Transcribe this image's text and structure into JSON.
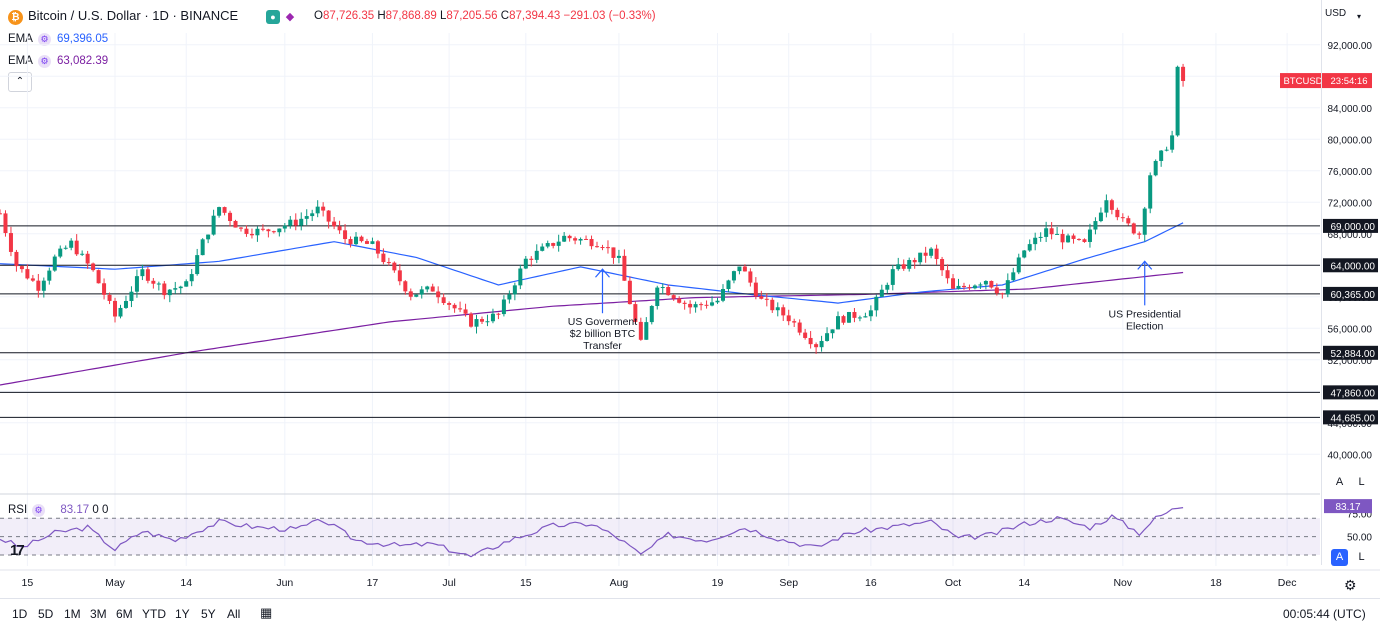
{
  "header": {
    "symbol_icon": "bitcoin-icon",
    "symbol_icon_glyph": "₿",
    "title": "Bitcoin / U.S. Dollar · 1D · BINANCE",
    "ohlc": {
      "o_label": "O",
      "o": "87,726.35",
      "h_label": "H",
      "h": "87,868.89",
      "l_label": "L",
      "l": "87,205.56",
      "c_label": "C",
      "c": "87,394.43",
      "change": "−291.03 (−0.33%)"
    }
  },
  "indicators": [
    {
      "label": "EMA",
      "value": "69,396.05",
      "color": "#2962ff"
    },
    {
      "label": "EMA",
      "value": "63,082.39",
      "color": "#7b1fa2"
    }
  ],
  "rsi_legend": {
    "label": "RSI",
    "value": "83.17",
    "extra1": "0",
    "extra2": "0",
    "color": "#7e57c2"
  },
  "currency": "USD",
  "price_tag": {
    "symbol": "BTCUSD",
    "countdown": "23:54:16"
  },
  "range_buttons": [
    "1D",
    "5D",
    "1M",
    "3M",
    "6M",
    "YTD",
    "1Y",
    "5Y",
    "All"
  ],
  "clock": "00:05:44 (UTC)",
  "axis_buttons": {
    "a": "A",
    "l": "L"
  },
  "logo_text": "17",
  "chart_data": {
    "type": "candlestick",
    "title": "Bitcoin / U.S. Dollar · 1D · BINANCE",
    "y_ticks": [
      "40,000.00",
      "44,000.00",
      "48,000.00",
      "52,000.00",
      "56,000.00",
      "60,000.00",
      "64,000.00",
      "68,000.00",
      "72,000.00",
      "76,000.00",
      "80,000.00",
      "84,000.00",
      "88,000.00",
      "92,000.00"
    ],
    "y_tick_values": [
      40000,
      44000,
      48000,
      52000,
      56000,
      60000,
      64000,
      68000,
      72000,
      76000,
      80000,
      84000,
      88000,
      92000
    ],
    "ylim": [
      38000,
      93500
    ],
    "x_ticks": [
      "15",
      "May",
      "14",
      "Jun",
      "17",
      "Jul",
      "15",
      "Aug",
      "19",
      "Sep",
      "16",
      "Oct",
      "14",
      "Nov",
      "18",
      "Dec"
    ],
    "x_tick_dates": [
      "2024-04-15",
      "2024-05-01",
      "2024-05-14",
      "2024-06-01",
      "2024-06-17",
      "2024-07-01",
      "2024-07-15",
      "2024-08-01",
      "2024-08-19",
      "2024-09-01",
      "2024-09-16",
      "2024-10-01",
      "2024-10-14",
      "2024-11-01",
      "2024-11-18",
      "2024-12-01"
    ],
    "xlim": [
      "2024-04-10",
      "2024-12-07"
    ],
    "levels": [
      {
        "value": 69000,
        "label": "69,000.00"
      },
      {
        "value": 64000,
        "label": "64,000.00"
      },
      {
        "value": 60365,
        "label": "60,365.00"
      },
      {
        "value": 52884,
        "label": "52,884.00"
      },
      {
        "value": 47860,
        "label": "47,860.00"
      },
      {
        "value": 44685,
        "label": "44,685.00"
      }
    ],
    "annotations": [
      {
        "lines": [
          "US Goverment",
          "$2 billion BTC",
          "Transfer"
        ],
        "date": "2024-07-29",
        "value": 63500
      },
      {
        "lines": [
          "US Presidential",
          "Election"
        ],
        "date": "2024-11-05",
        "value": 64500
      }
    ],
    "up_color": "#089981",
    "down_color": "#f23645",
    "last_price": 87394.43,
    "candle_anchors": [
      [
        "2024-04-10",
        70600
      ],
      [
        "2024-04-13",
        64000
      ],
      [
        "2024-04-17",
        61300
      ],
      [
        "2024-04-20",
        64900
      ],
      [
        "2024-04-23",
        66800
      ],
      [
        "2024-04-27",
        63200
      ],
      [
        "2024-05-01",
        57500
      ],
      [
        "2024-05-06",
        63200
      ],
      [
        "2024-05-10",
        60800
      ],
      [
        "2024-05-14",
        61500
      ],
      [
        "2024-05-17",
        66900
      ],
      [
        "2024-05-20",
        71400
      ],
      [
        "2024-05-24",
        68500
      ],
      [
        "2024-05-28",
        68300
      ],
      [
        "2024-06-03",
        69500
      ],
      [
        "2024-06-07",
        71100
      ],
      [
        "2024-06-12",
        67400
      ],
      [
        "2024-06-17",
        66500
      ],
      [
        "2024-06-24",
        60300
      ],
      [
        "2024-06-28",
        61000
      ],
      [
        "2024-07-05",
        56700
      ],
      [
        "2024-07-10",
        57700
      ],
      [
        "2024-07-15",
        64700
      ],
      [
        "2024-07-22",
        67600
      ],
      [
        "2024-07-29",
        66800
      ],
      [
        "2024-08-01",
        64600
      ],
      [
        "2024-08-05",
        54000
      ],
      [
        "2024-08-08",
        61700
      ],
      [
        "2024-08-14",
        58700
      ],
      [
        "2024-08-19",
        59500
      ],
      [
        "2024-08-23",
        64100
      ],
      [
        "2024-08-27",
        59500
      ],
      [
        "2024-09-01",
        57300
      ],
      [
        "2024-09-06",
        53900
      ],
      [
        "2024-09-10",
        57100
      ],
      [
        "2024-09-16",
        58200
      ],
      [
        "2024-09-20",
        63200
      ],
      [
        "2024-09-27",
        65800
      ],
      [
        "2024-10-01",
        60800
      ],
      [
        "2024-10-07",
        62200
      ],
      [
        "2024-10-10",
        60300
      ],
      [
        "2024-10-14",
        65900
      ],
      [
        "2024-10-18",
        68400
      ],
      [
        "2024-10-21",
        67400
      ],
      [
        "2024-10-25",
        66600
      ],
      [
        "2024-10-29",
        72700
      ],
      [
        "2024-11-01",
        69500
      ],
      [
        "2024-11-04",
        68000
      ],
      [
        "2024-11-06",
        75600
      ],
      [
        "2024-11-10",
        80400
      ],
      [
        "2024-11-11",
        88700
      ],
      [
        "2024-11-12",
        87394
      ]
    ],
    "ema_fast_anchors": [
      [
        "2024-04-10",
        64200
      ],
      [
        "2024-05-01",
        63500
      ],
      [
        "2024-05-20",
        64500
      ],
      [
        "2024-06-10",
        67000
      ],
      [
        "2024-06-25",
        65000
      ],
      [
        "2024-07-10",
        61500
      ],
      [
        "2024-07-25",
        63800
      ],
      [
        "2024-08-10",
        61500
      ],
      [
        "2024-08-25",
        60300
      ],
      [
        "2024-09-10",
        59200
      ],
      [
        "2024-09-25",
        60600
      ],
      [
        "2024-10-10",
        61500
      ],
      [
        "2024-10-25",
        64800
      ],
      [
        "2024-11-05",
        67000
      ],
      [
        "2024-11-12",
        69396
      ]
    ],
    "ema_slow_anchors": [
      [
        "2024-04-10",
        48800
      ],
      [
        "2024-05-15",
        53000
      ],
      [
        "2024-06-20",
        56800
      ],
      [
        "2024-07-20",
        58800
      ],
      [
        "2024-08-15",
        59900
      ],
      [
        "2024-09-15",
        60300
      ],
      [
        "2024-10-15",
        61000
      ],
      [
        "2024-11-12",
        63082
      ]
    ],
    "rsi": {
      "ylim": [
        18,
        92
      ],
      "ticks": [
        "75.00",
        "50.00"
      ],
      "tick_values": [
        75,
        50
      ],
      "band": [
        30,
        70
      ],
      "mid": 50,
      "last": 83.17,
      "anchors": [
        [
          "2024-04-10",
          48
        ],
        [
          "2024-04-14",
          38
        ],
        [
          "2024-04-20",
          54
        ],
        [
          "2024-04-26",
          60
        ],
        [
          "2024-05-01",
          36
        ],
        [
          "2024-05-06",
          56
        ],
        [
          "2024-05-12",
          46
        ],
        [
          "2024-05-20",
          66
        ],
        [
          "2024-05-27",
          60
        ],
        [
          "2024-06-03",
          58
        ],
        [
          "2024-06-08",
          68
        ],
        [
          "2024-06-14",
          46
        ],
        [
          "2024-06-22",
          40
        ],
        [
          "2024-06-28",
          42
        ],
        [
          "2024-07-05",
          28
        ],
        [
          "2024-07-12",
          46
        ],
        [
          "2024-07-20",
          62
        ],
        [
          "2024-07-27",
          64
        ],
        [
          "2024-08-01",
          48
        ],
        [
          "2024-08-05",
          30
        ],
        [
          "2024-08-10",
          52
        ],
        [
          "2024-08-17",
          46
        ],
        [
          "2024-08-24",
          60
        ],
        [
          "2024-08-30",
          48
        ],
        [
          "2024-09-06",
          38
        ],
        [
          "2024-09-12",
          54
        ],
        [
          "2024-09-19",
          60
        ],
        [
          "2024-09-27",
          66
        ],
        [
          "2024-10-02",
          48
        ],
        [
          "2024-10-08",
          52
        ],
        [
          "2024-10-14",
          64
        ],
        [
          "2024-10-20",
          70
        ],
        [
          "2024-10-26",
          60
        ],
        [
          "2024-10-30",
          72
        ],
        [
          "2024-11-04",
          54
        ],
        [
          "2024-11-07",
          70
        ],
        [
          "2024-11-11",
          82
        ],
        [
          "2024-11-12",
          83.17
        ]
      ]
    }
  }
}
